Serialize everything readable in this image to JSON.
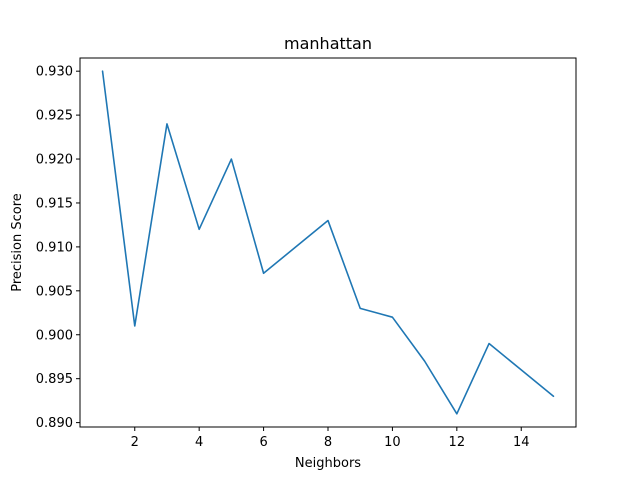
{
  "chart_data": {
    "type": "line",
    "title": "manhattan",
    "xlabel": "Neighbors",
    "ylabel": "Precision Score",
    "xlim": [
      0.3,
      15.7
    ],
    "ylim": [
      0.8895,
      0.9315
    ],
    "xticks": [
      2,
      4,
      6,
      8,
      10,
      12,
      14
    ],
    "xtick_labels": [
      "2",
      "4",
      "6",
      "8",
      "10",
      "12",
      "14"
    ],
    "yticks": [
      0.89,
      0.895,
      0.9,
      0.905,
      0.91,
      0.915,
      0.92,
      0.925,
      0.93
    ],
    "ytick_labels": [
      "0.890",
      "0.895",
      "0.900",
      "0.905",
      "0.910",
      "0.915",
      "0.920",
      "0.925",
      "0.930"
    ],
    "grid": false,
    "series": [
      {
        "color": "#1f77b4",
        "x": [
          1,
          2,
          3,
          4,
          5,
          6,
          7,
          8,
          9,
          10,
          11,
          12,
          13,
          14,
          15
        ],
        "y": [
          0.93,
          0.901,
          0.924,
          0.912,
          0.92,
          0.907,
          0.91,
          0.913,
          0.903,
          0.902,
          0.897,
          0.891,
          0.899,
          0.896,
          0.893
        ]
      }
    ]
  }
}
